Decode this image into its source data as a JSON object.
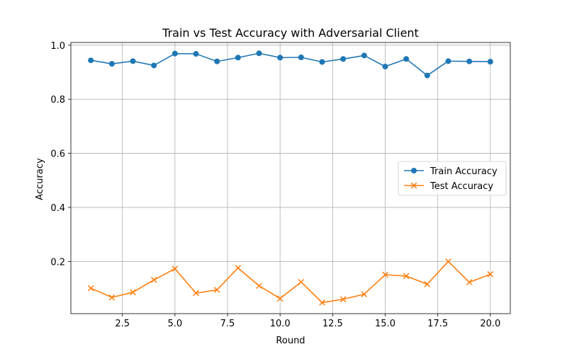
{
  "chart_data": {
    "type": "line",
    "title": "Train vs Test Accuracy with Adversarial Client",
    "xlabel": "Round",
    "ylabel": "Accuracy",
    "xlim": [
      0.05,
      20.95
    ],
    "ylim": [
      0.007,
      1.01
    ],
    "xticks": [
      2.5,
      5.0,
      7.5,
      10.0,
      12.5,
      15.0,
      17.5,
      20.0
    ],
    "xtick_labels": [
      "2.5",
      "5.0",
      "7.5",
      "10.0",
      "12.5",
      "15.0",
      "17.5",
      "20.0"
    ],
    "yticks": [
      0.2,
      0.4,
      0.6,
      0.8,
      1.0
    ],
    "ytick_labels": [
      "0.2",
      "0.4",
      "0.6",
      "0.8",
      "1.0"
    ],
    "grid": true,
    "legend_position": "center-right",
    "x": [
      1,
      2,
      3,
      4,
      5,
      6,
      7,
      8,
      9,
      10,
      11,
      12,
      13,
      14,
      15,
      16,
      17,
      18,
      19,
      20
    ],
    "series": [
      {
        "name": "Train Accuracy",
        "color": "#1f77b4",
        "marker": "circle",
        "values": [
          0.944,
          0.931,
          0.941,
          0.925,
          0.969,
          0.968,
          0.94,
          0.954,
          0.97,
          0.954,
          0.955,
          0.938,
          0.949,
          0.962,
          0.921,
          0.949,
          0.888,
          0.941,
          0.94,
          0.939
        ]
      },
      {
        "name": "Test Accuracy",
        "color": "#ff7f0e",
        "marker": "x",
        "values": [
          0.101,
          0.067,
          0.086,
          0.132,
          0.173,
          0.083,
          0.095,
          0.176,
          0.11,
          0.063,
          0.124,
          0.048,
          0.06,
          0.079,
          0.151,
          0.146,
          0.116,
          0.2,
          0.123,
          0.153
        ]
      }
    ]
  }
}
